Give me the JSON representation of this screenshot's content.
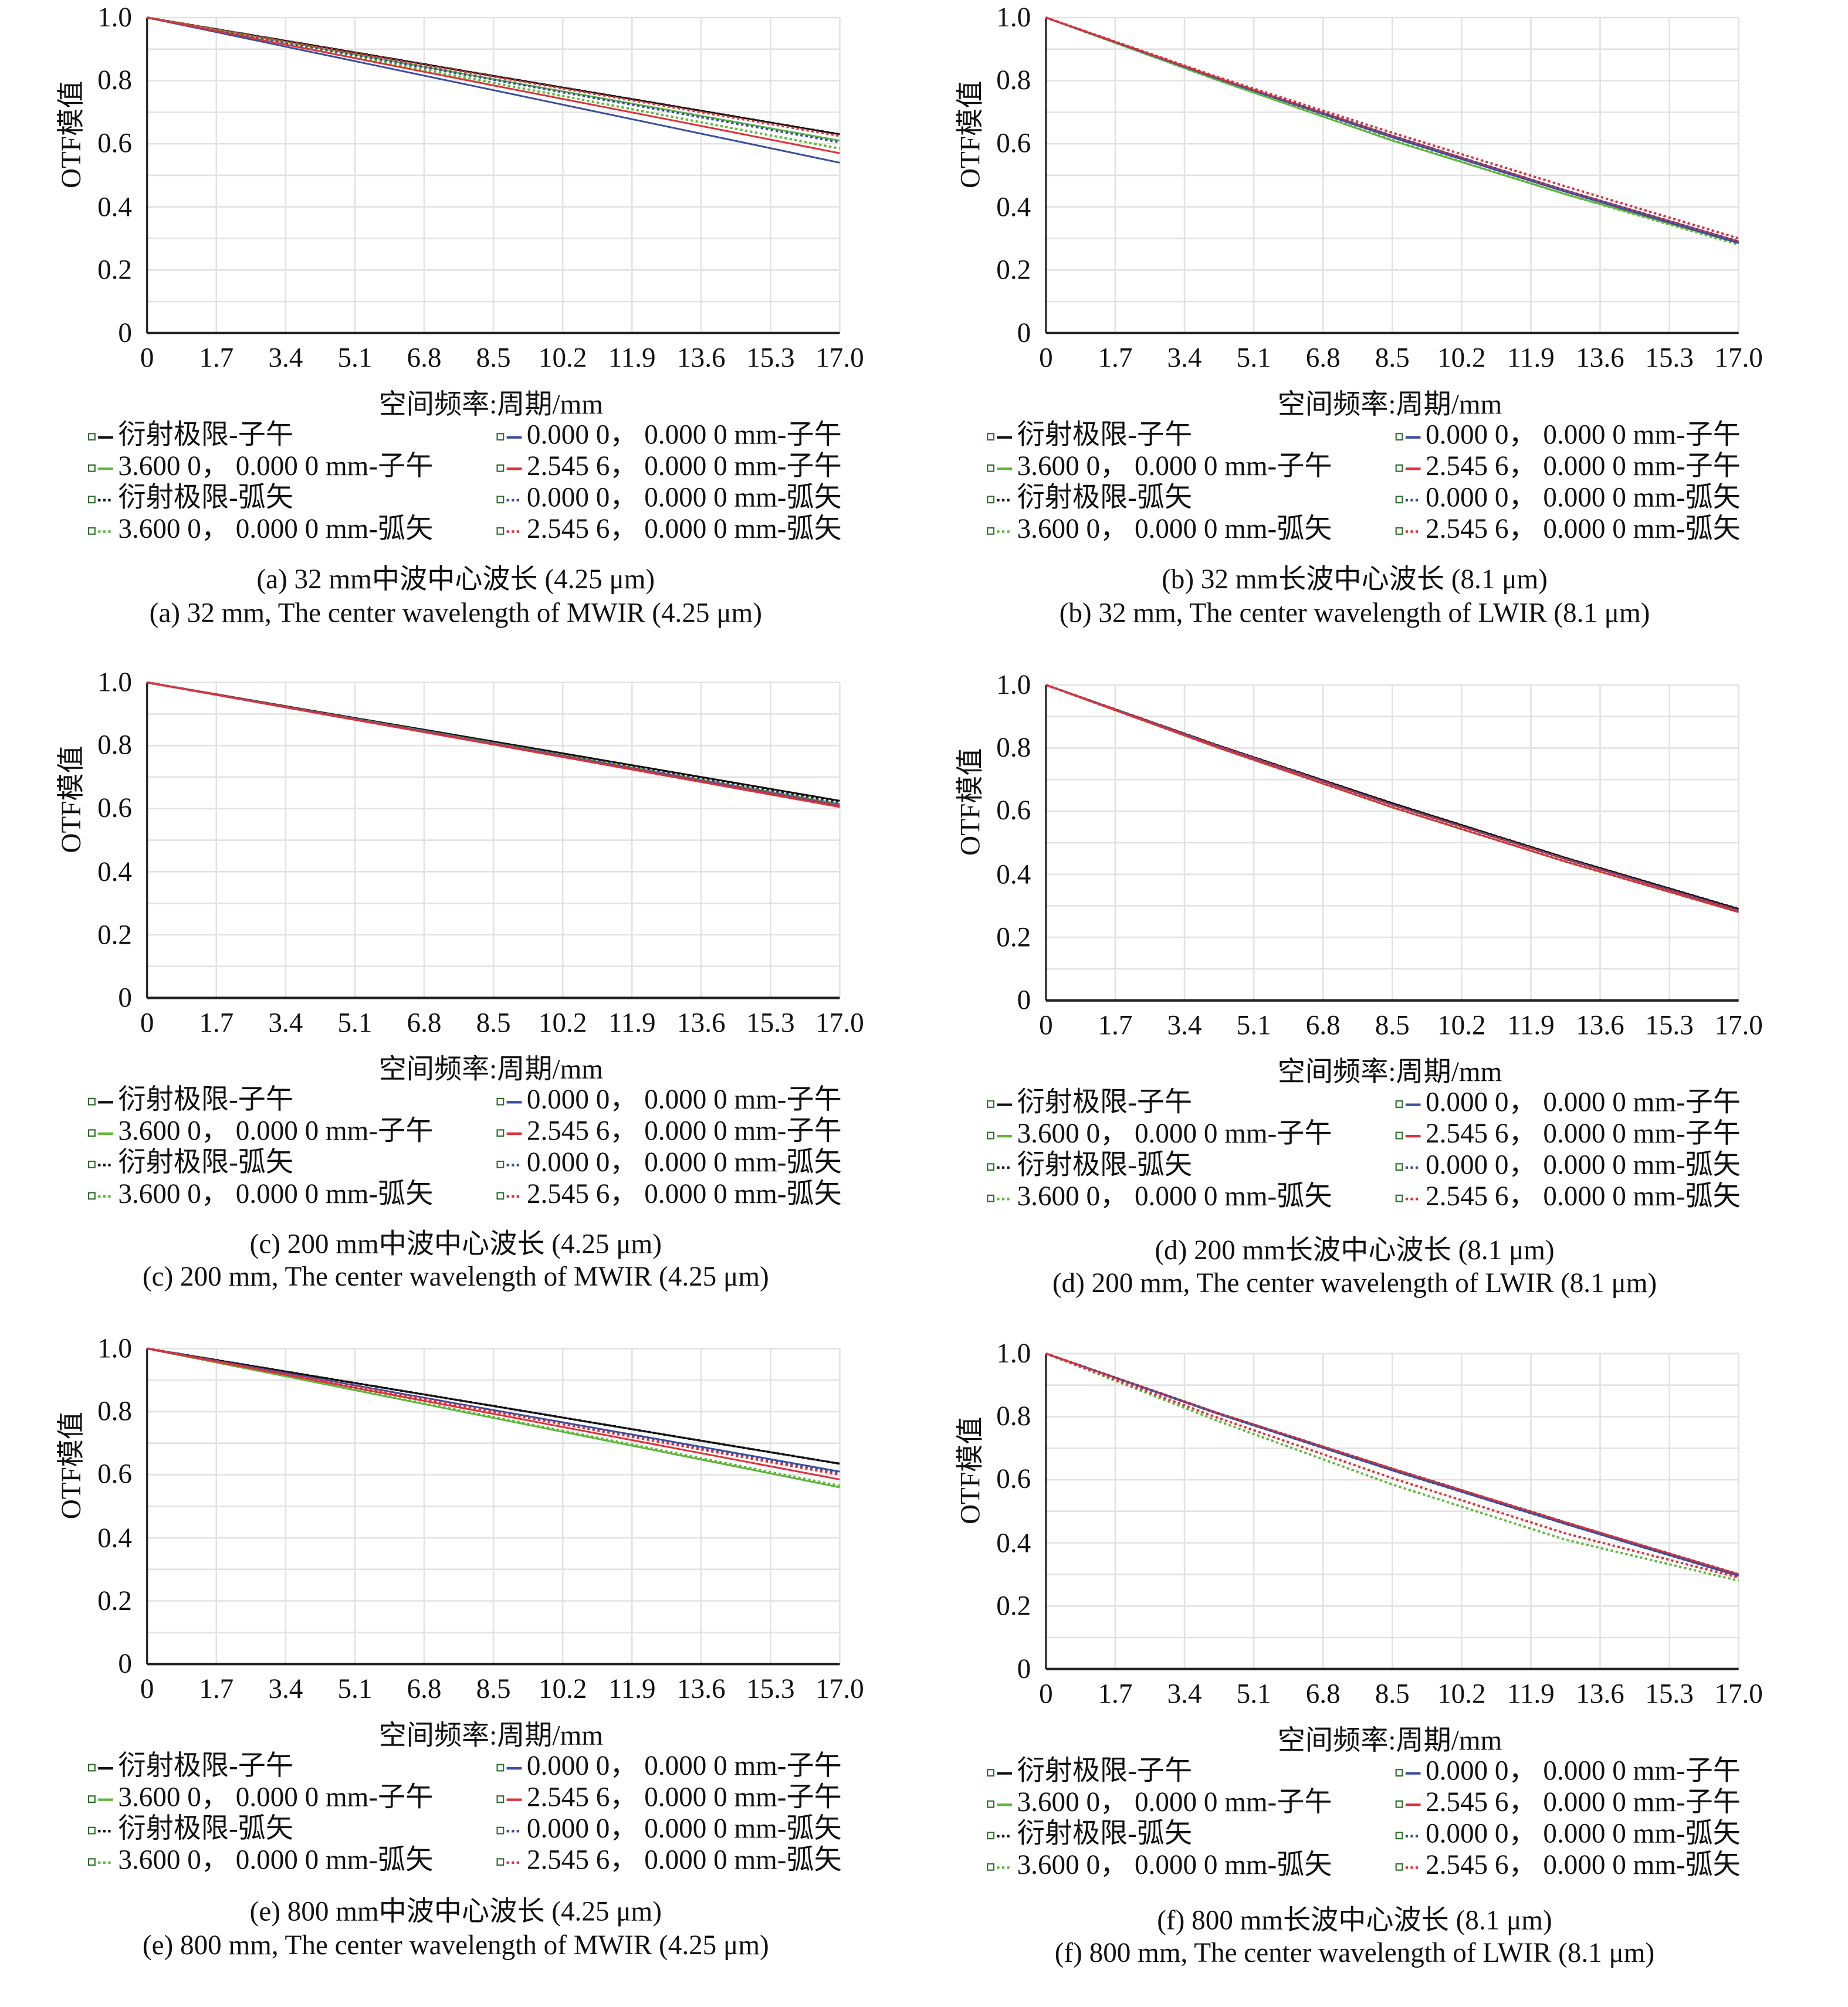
{
  "axis": {
    "ylabel": "OTF模值",
    "xlabel": "空间频率:周期/mm",
    "yticks": [
      "1.0",
      "0.8",
      "0.6",
      "0.4",
      "0.2",
      "0"
    ],
    "xticks": [
      "0",
      "1.7",
      "3.4",
      "5.1",
      "6.8",
      "8.5",
      "10.2",
      "11.9",
      "13.6",
      "15.3",
      "17.0"
    ]
  },
  "colors": {
    "black": "#111111",
    "green": "#5db83a",
    "blue": "#3a4ea0",
    "red": "#e0303a",
    "grid": "#e2e2e2"
  },
  "chart_data": [
    {
      "type": "line",
      "id": "a",
      "caption_cn": "(a) 32 mm中波中心波长 (4.25 μm)",
      "caption_en": "(a) 32 mm, The center wavelength of MWIR (4.25 μm)",
      "xlim": [
        0,
        17
      ],
      "ylim": [
        0,
        1
      ],
      "grid": true,
      "x": [
        0,
        4.25,
        8.5,
        12.75,
        17
      ],
      "series": [
        {
          "name": "衍射极限-子午",
          "color": "black",
          "style": "solid",
          "values": [
            1,
            0.908,
            0.815,
            0.723,
            0.63
          ]
        },
        {
          "name": "3.600 0， 0.000 0 mm-子午",
          "color": "green",
          "style": "solid",
          "values": [
            1,
            0.903,
            0.805,
            0.708,
            0.61
          ]
        },
        {
          "name": "衍射极限-弧矢",
          "color": "black",
          "style": "dotted",
          "values": [
            1,
            0.908,
            0.815,
            0.723,
            0.63
          ]
        },
        {
          "name": "3.600 0， 0.000 0 mm-弧矢",
          "color": "green",
          "style": "dotted",
          "values": [
            1,
            0.896,
            0.793,
            0.689,
            0.585
          ]
        },
        {
          "name": "0.000 0， 0.000 0 mm-子午",
          "color": "blue",
          "style": "solid",
          "values": [
            1,
            0.885,
            0.77,
            0.655,
            0.54
          ]
        },
        {
          "name": "2.545 6， 0.000 0 mm-子午",
          "color": "red",
          "style": "solid",
          "values": [
            1,
            0.893,
            0.785,
            0.678,
            0.57
          ]
        },
        {
          "name": "0.000 0， 0.000 0 mm-弧矢",
          "color": "blue",
          "style": "dotted",
          "values": [
            1,
            0.901,
            0.803,
            0.704,
            0.605
          ]
        },
        {
          "name": "2.545 6， 0.000 0 mm-弧矢",
          "color": "red",
          "style": "dotted",
          "values": [
            1,
            0.906,
            0.813,
            0.719,
            0.625
          ]
        }
      ]
    },
    {
      "type": "line",
      "id": "b",
      "caption_cn": "(b) 32 mm长波中心波长 (8.1 μm)",
      "caption_en": "(b) 32 mm, The center wavelength of LWIR (8.1 μm)",
      "xlim": [
        0,
        17
      ],
      "ylim": [
        0,
        1
      ],
      "grid": true,
      "x": [
        0,
        4.25,
        8.5,
        12.75,
        17
      ],
      "series": [
        {
          "name": "衍射极限-子午",
          "color": "black",
          "style": "solid",
          "values": [
            1,
            0.807,
            0.625,
            0.452,
            0.29
          ]
        },
        {
          "name": "3.600 0， 0.000 0 mm-子午",
          "color": "green",
          "style": "solid",
          "values": [
            1,
            0.8,
            0.61,
            0.44,
            0.285
          ]
        },
        {
          "name": "衍射极限-弧矢",
          "color": "black",
          "style": "dotted",
          "values": [
            1,
            0.807,
            0.625,
            0.452,
            0.29
          ]
        },
        {
          "name": "3.600 0， 0.000 0 mm-弧矢",
          "color": "green",
          "style": "dotted",
          "values": [
            1,
            0.8,
            0.612,
            0.44,
            0.28
          ]
        },
        {
          "name": "0.000 0， 0.000 0 mm-子午",
          "color": "blue",
          "style": "solid",
          "values": [
            1,
            0.805,
            0.62,
            0.448,
            0.285
          ]
        },
        {
          "name": "2.545 6， 0.000 0 mm-子午",
          "color": "red",
          "style": "solid",
          "values": [
            1,
            0.807,
            0.625,
            0.452,
            0.29
          ]
        },
        {
          "name": "0.000 0， 0.000 0 mm-弧矢",
          "color": "blue",
          "style": "dotted",
          "values": [
            1,
            0.807,
            0.625,
            0.452,
            0.29
          ]
        },
        {
          "name": "2.545 6， 0.000 0 mm-弧矢",
          "color": "red",
          "style": "dotted",
          "values": [
            1,
            0.81,
            0.635,
            0.465,
            0.3
          ]
        }
      ]
    },
    {
      "type": "line",
      "id": "c",
      "caption_cn": "(c) 200 mm中波中心波长 (4.25 μm)",
      "caption_en": "(c) 200 mm, The center wavelength of MWIR (4.25 μm)",
      "xlim": [
        0,
        17
      ],
      "ylim": [
        0,
        1
      ],
      "grid": true,
      "x": [
        0,
        4.25,
        8.5,
        12.75,
        17
      ],
      "series": [
        {
          "name": "衍射极限-子午",
          "color": "black",
          "style": "solid",
          "values": [
            1,
            0.906,
            0.813,
            0.719,
            0.625
          ]
        },
        {
          "name": "3.600 0， 0.000 0 mm-子午",
          "color": "green",
          "style": "solid",
          "values": [
            1,
            0.904,
            0.808,
            0.711,
            0.615
          ]
        },
        {
          "name": "衍射极限-弧矢",
          "color": "black",
          "style": "dotted",
          "values": [
            1,
            0.905,
            0.81,
            0.715,
            0.62
          ]
        },
        {
          "name": "3.600 0， 0.000 0 mm-弧矢",
          "color": "green",
          "style": "dotted",
          "values": [
            1,
            0.904,
            0.808,
            0.711,
            0.615
          ]
        },
        {
          "name": "0.000 0， 0.000 0 mm-子午",
          "color": "blue",
          "style": "solid",
          "values": [
            1,
            0.903,
            0.805,
            0.708,
            0.61
          ]
        },
        {
          "name": "2.545 6， 0.000 0 mm-子午",
          "color": "red",
          "style": "solid",
          "values": [
            1,
            0.901,
            0.803,
            0.704,
            0.605
          ]
        },
        {
          "name": "0.000 0， 0.000 0 mm-弧矢",
          "color": "blue",
          "style": "dotted",
          "values": [
            1,
            0.904,
            0.808,
            0.711,
            0.615
          ]
        },
        {
          "name": "2.545 6， 0.000 0 mm-弧矢",
          "color": "red",
          "style": "dotted",
          "values": [
            1,
            0.903,
            0.805,
            0.708,
            0.61
          ]
        }
      ]
    },
    {
      "type": "line",
      "id": "d",
      "caption_cn": "(d) 200 mm长波中心波长 (8.1 μm)",
      "caption_en": "(d) 200 mm, The center wavelength of LWIR (8.1 μm)",
      "xlim": [
        0,
        17
      ],
      "ylim": [
        0,
        1
      ],
      "grid": true,
      "x": [
        0,
        4.25,
        8.5,
        12.75,
        17
      ],
      "series": [
        {
          "name": "衍射极限-子午",
          "color": "black",
          "style": "solid",
          "values": [
            1,
            0.807,
            0.625,
            0.452,
            0.29
          ]
        },
        {
          "name": "3.600 0， 0.000 0 mm-子午",
          "color": "green",
          "style": "solid",
          "values": [
            1,
            0.805,
            0.62,
            0.448,
            0.285
          ]
        },
        {
          "name": "衍射极限-弧矢",
          "color": "black",
          "style": "dotted",
          "values": [
            1,
            0.807,
            0.625,
            0.452,
            0.29
          ]
        },
        {
          "name": "3.600 0， 0.000 0 mm-弧矢",
          "color": "green",
          "style": "dotted",
          "values": [
            1,
            0.8,
            0.612,
            0.44,
            0.28
          ]
        },
        {
          "name": "0.000 0， 0.000 0 mm-子午",
          "color": "blue",
          "style": "solid",
          "values": [
            1,
            0.805,
            0.62,
            0.448,
            0.285
          ]
        },
        {
          "name": "2.545 6， 0.000 0 mm-子午",
          "color": "red",
          "style": "solid",
          "values": [
            1,
            0.8,
            0.612,
            0.44,
            0.28
          ]
        },
        {
          "name": "0.000 0， 0.000 0 mm-弧矢",
          "color": "blue",
          "style": "dotted",
          "values": [
            1,
            0.805,
            0.62,
            0.448,
            0.285
          ]
        },
        {
          "name": "2.545 6， 0.000 0 mm-弧矢",
          "color": "red",
          "style": "dotted",
          "values": [
            1,
            0.805,
            0.62,
            0.448,
            0.285
          ]
        }
      ]
    },
    {
      "type": "line",
      "id": "e",
      "caption_cn": "(e) 800 mm中波中心波长 (4.25 μm)",
      "caption_en": "(e) 800 mm, The center wavelength of MWIR (4.25 μm)",
      "xlim": [
        0,
        17
      ],
      "ylim": [
        0,
        1
      ],
      "grid": true,
      "x": [
        0,
        4.25,
        8.5,
        12.75,
        17
      ],
      "series": [
        {
          "name": "衍射极限-子午",
          "color": "black",
          "style": "solid",
          "values": [
            1,
            0.909,
            0.818,
            0.726,
            0.635
          ]
        },
        {
          "name": "3.600 0， 0.000 0 mm-子午",
          "color": "green",
          "style": "solid",
          "values": [
            1,
            0.89,
            0.78,
            0.67,
            0.56
          ]
        },
        {
          "name": "衍射极限-弧矢",
          "color": "black",
          "style": "dotted",
          "values": [
            1,
            0.909,
            0.818,
            0.726,
            0.635
          ]
        },
        {
          "name": "3.600 0， 0.000 0 mm-弧矢",
          "color": "green",
          "style": "dotted",
          "values": [
            1,
            0.891,
            0.783,
            0.674,
            0.565
          ]
        },
        {
          "name": "0.000 0， 0.000 0 mm-子午",
          "color": "blue",
          "style": "solid",
          "values": [
            1,
            0.903,
            0.805,
            0.708,
            0.61
          ]
        },
        {
          "name": "2.545 6， 0.000 0 mm-子午",
          "color": "red",
          "style": "solid",
          "values": [
            1,
            0.896,
            0.793,
            0.689,
            0.585
          ]
        },
        {
          "name": "0.000 0， 0.000 0 mm-弧矢",
          "color": "blue",
          "style": "dotted",
          "values": [
            1,
            0.901,
            0.803,
            0.704,
            0.605
          ]
        },
        {
          "name": "2.545 6， 0.000 0 mm-弧矢",
          "color": "red",
          "style": "dotted",
          "values": [
            1,
            0.9,
            0.8,
            0.7,
            0.6
          ]
        }
      ]
    },
    {
      "type": "line",
      "id": "f",
      "caption_cn": "(f) 800 mm长波中心波长 (8.1 μm)",
      "caption_en": "(f) 800 mm, The center wavelength of LWIR (8.1 μm)",
      "xlim": [
        0,
        17
      ],
      "ylim": [
        0,
        1
      ],
      "grid": true,
      "x": [
        0,
        4.25,
        8.5,
        12.75,
        17
      ],
      "series": [
        {
          "name": "衍射极限-子午",
          "color": "black",
          "style": "solid",
          "values": [
            1,
            0.81,
            0.635,
            0.465,
            0.3
          ]
        },
        {
          "name": "3.600 0， 0.000 0 mm-子午",
          "color": "green",
          "style": "solid",
          "values": [
            1,
            0.81,
            0.635,
            0.465,
            0.3
          ]
        },
        {
          "name": "衍射极限-弧矢",
          "color": "black",
          "style": "dotted",
          "values": [
            1,
            0.81,
            0.635,
            0.465,
            0.3
          ]
        },
        {
          "name": "3.600 0， 0.000 0 mm-弧矢",
          "color": "green",
          "style": "dotted",
          "values": [
            1,
            0.785,
            0.585,
            0.41,
            0.28
          ]
        },
        {
          "name": "0.000 0， 0.000 0 mm-子午",
          "color": "blue",
          "style": "solid",
          "values": [
            1,
            0.808,
            0.63,
            0.46,
            0.295
          ]
        },
        {
          "name": "2.545 6， 0.000 0 mm-子午",
          "color": "red",
          "style": "solid",
          "values": [
            1,
            0.81,
            0.635,
            0.465,
            0.3
          ]
        },
        {
          "name": "0.000 0， 0.000 0 mm-弧矢",
          "color": "blue",
          "style": "dotted",
          "values": [
            1,
            0.808,
            0.63,
            0.46,
            0.295
          ]
        },
        {
          "name": "2.545 6， 0.000 0 mm-弧矢",
          "color": "red",
          "style": "dotted",
          "values": [
            1,
            0.795,
            0.605,
            0.43,
            0.29
          ]
        }
      ]
    }
  ]
}
